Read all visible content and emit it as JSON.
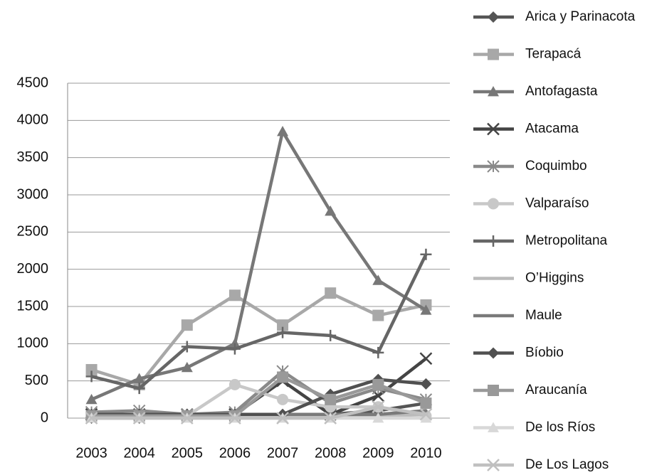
{
  "chart_data": {
    "type": "line",
    "categories": [
      "2003",
      "2004",
      "2005",
      "2006",
      "2007",
      "2008",
      "2009",
      "2010"
    ],
    "ylim": [
      0,
      4500
    ],
    "yticks": [
      0,
      500,
      1000,
      1500,
      2000,
      2500,
      3000,
      3500,
      4000,
      4500
    ],
    "grid": true,
    "legend": "right",
    "series": [
      {
        "name": "Arica y Parinacota",
        "color": "#555555",
        "marker": "diamond",
        "values": [
          0,
          0,
          50,
          50,
          50,
          50,
          100,
          200
        ]
      },
      {
        "name": "Terapacá",
        "color": "#a8a8a8",
        "marker": "square",
        "values": [
          650,
          450,
          1250,
          1650,
          1250,
          1680,
          1380,
          1520
        ]
      },
      {
        "name": "Antofagasta",
        "color": "#777777",
        "marker": "triangle",
        "values": [
          250,
          530,
          680,
          1000,
          3850,
          2780,
          1850,
          1450
        ]
      },
      {
        "name": "Atacama",
        "color": "#444444",
        "marker": "x",
        "values": [
          50,
          50,
          50,
          50,
          500,
          50,
          300,
          800
        ]
      },
      {
        "name": "Coquimbo",
        "color": "#8a8a8a",
        "marker": "star",
        "values": [
          80,
          100,
          50,
          80,
          630,
          200,
          400,
          250
        ]
      },
      {
        "name": "Valparaíso",
        "color": "#c8c8c8",
        "marker": "circle",
        "values": [
          30,
          30,
          30,
          450,
          250,
          150,
          150,
          30
        ]
      },
      {
        "name": "Metropolitana",
        "color": "#666666",
        "marker": "plus",
        "values": [
          560,
          400,
          960,
          930,
          1150,
          1110,
          880,
          2200
        ]
      },
      {
        "name": "O’Higgins",
        "color": "#bbbbbb",
        "marker": "none",
        "values": [
          20,
          20,
          20,
          20,
          20,
          20,
          20,
          50
        ]
      },
      {
        "name": "Maule",
        "color": "#7a7a7a",
        "marker": "none",
        "values": [
          50,
          50,
          50,
          50,
          50,
          50,
          50,
          100
        ]
      },
      {
        "name": "Bíobio",
        "color": "#505050",
        "marker": "diamond",
        "values": [
          50,
          50,
          50,
          50,
          50,
          320,
          520,
          460
        ]
      },
      {
        "name": "Araucanía",
        "color": "#999999",
        "marker": "square",
        "values": [
          30,
          30,
          30,
          30,
          550,
          250,
          450,
          200
        ]
      },
      {
        "name": "De los Ríos",
        "color": "#d8d8d8",
        "marker": "triangle",
        "values": [
          0,
          0,
          0,
          0,
          0,
          0,
          0,
          0
        ]
      },
      {
        "name": "De Los Lagos",
        "color": "#c0c0c0",
        "marker": "x",
        "values": [
          0,
          0,
          0,
          0,
          0,
          0,
          150,
          50
        ]
      }
    ]
  }
}
